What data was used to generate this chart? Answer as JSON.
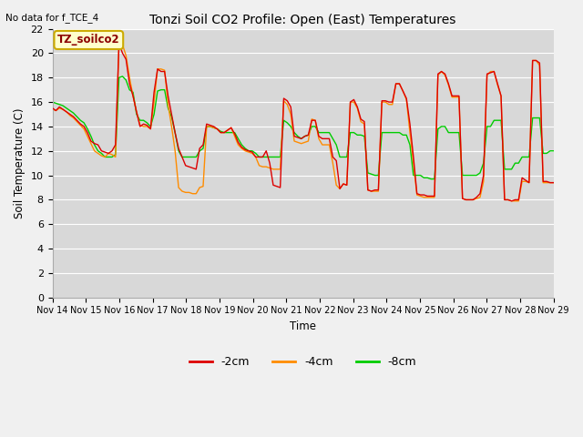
{
  "title": "Tonzi Soil CO2 Profile: Open (East) Temperatures",
  "no_data_label": "No data for f_TCE_4",
  "ylabel": "Soil Temperature (C)",
  "xlabel": "Time",
  "legend_label": "TZ_soilco2",
  "ylim": [
    0,
    22
  ],
  "yticks": [
    0,
    2,
    4,
    6,
    8,
    10,
    12,
    14,
    16,
    18,
    20,
    22
  ],
  "xtick_labels": [
    "Nov 14",
    "Nov 15",
    "Nov 16",
    "Nov 17",
    "Nov 18",
    "Nov 19",
    "Nov 20",
    "Nov 21",
    "Nov 22",
    "Nov 23",
    "Nov 24",
    "Nov 25",
    "Nov 26",
    "Nov 27",
    "Nov 28",
    "Nov 29"
  ],
  "fig_bg_color": "#f0f0f0",
  "plot_bg_color": "#d8d8d8",
  "line_colors": {
    "2cm": "#dd0000",
    "4cm": "#ff8c00",
    "8cm": "#00cc00"
  },
  "line_labels": [
    "-2cm",
    "-4cm",
    "-8cm"
  ],
  "series_2cm": [
    15.5,
    15.3,
    15.6,
    15.4,
    15.2,
    15.0,
    14.8,
    14.5,
    14.2,
    14.0,
    13.5,
    12.8,
    12.6,
    12.5,
    12.0,
    11.9,
    11.8,
    12.0,
    12.5,
    20.8,
    20.0,
    19.5,
    17.5,
    16.5,
    15.2,
    14.0,
    14.2,
    14.1,
    13.8,
    16.8,
    18.7,
    18.5,
    18.5,
    16.5,
    15.0,
    13.5,
    12.2,
    11.5,
    10.8,
    10.7,
    10.6,
    10.5,
    12.2,
    12.5,
    14.2,
    14.1,
    14.0,
    13.8,
    13.5,
    13.5,
    13.7,
    13.9,
    13.4,
    12.7,
    12.3,
    12.1,
    12.0,
    11.9,
    11.5,
    11.5,
    11.5,
    12.0,
    11.0,
    9.2,
    9.1,
    9.0,
    16.3,
    16.1,
    15.6,
    13.2,
    13.1,
    13.0,
    13.2,
    13.3,
    14.5,
    14.5,
    13.2,
    13.0,
    13.0,
    13.0,
    11.5,
    11.2,
    8.9,
    9.3,
    9.2,
    16.0,
    16.2,
    15.6,
    14.6,
    14.4,
    8.8,
    8.7,
    8.8,
    8.8,
    16.1,
    16.1,
    16.0,
    16.0,
    17.5,
    17.5,
    16.9,
    16.3,
    14.2,
    11.5,
    8.5,
    8.4,
    8.4,
    8.3,
    8.3,
    8.3,
    18.3,
    18.5,
    18.3,
    17.5,
    16.5,
    16.5,
    16.5,
    8.1,
    8.0,
    8.0,
    8.0,
    8.2,
    8.5,
    10.0,
    18.3,
    18.4,
    18.5,
    17.5,
    16.5,
    8.0,
    8.0,
    7.9,
    8.0,
    8.0,
    9.8,
    9.6,
    9.4,
    19.4,
    19.4,
    19.2,
    9.5,
    9.5,
    9.4,
    9.4
  ],
  "series_4cm": [
    15.4,
    15.3,
    15.5,
    15.4,
    15.2,
    14.9,
    14.7,
    14.4,
    14.1,
    13.8,
    13.2,
    12.6,
    12.0,
    11.8,
    11.6,
    11.5,
    11.8,
    11.7,
    11.5,
    20.8,
    20.7,
    19.8,
    18.0,
    16.5,
    15.2,
    14.1,
    14.0,
    14.0,
    13.8,
    16.0,
    18.7,
    18.7,
    18.6,
    15.8,
    14.0,
    12.0,
    9.0,
    8.7,
    8.6,
    8.6,
    8.5,
    8.5,
    9.0,
    9.1,
    14.0,
    14.0,
    13.9,
    13.8,
    13.5,
    13.5,
    13.7,
    13.9,
    13.2,
    12.5,
    12.2,
    12.0,
    11.9,
    11.8,
    11.5,
    10.8,
    10.7,
    10.7,
    10.6,
    10.5,
    10.5,
    10.5,
    16.1,
    15.8,
    15.0,
    12.8,
    12.7,
    12.6,
    12.7,
    12.8,
    14.6,
    14.5,
    13.0,
    12.5,
    12.5,
    12.5,
    11.0,
    9.2,
    8.9,
    9.3,
    9.2,
    16.0,
    16.0,
    15.5,
    14.4,
    14.2,
    8.8,
    8.7,
    8.7,
    8.7,
    16.0,
    16.0,
    15.8,
    15.8,
    17.5,
    17.5,
    16.9,
    16.2,
    13.5,
    11.0,
    8.4,
    8.3,
    8.2,
    8.2,
    8.2,
    8.2,
    18.2,
    18.5,
    18.2,
    17.4,
    16.4,
    16.4,
    16.4,
    8.1,
    8.0,
    8.0,
    8.0,
    8.1,
    8.2,
    9.5,
    18.2,
    18.5,
    18.5,
    17.4,
    16.5,
    8.0,
    8.0,
    7.9,
    7.9,
    7.9,
    9.5,
    9.5,
    9.4,
    19.4,
    19.4,
    19.0,
    9.4,
    9.4,
    9.4,
    9.4
  ],
  "series_8cm": [
    16.0,
    15.9,
    15.8,
    15.7,
    15.5,
    15.3,
    15.1,
    14.8,
    14.5,
    14.3,
    13.8,
    13.2,
    12.5,
    12.0,
    11.8,
    11.5,
    11.5,
    11.5,
    11.7,
    18.0,
    18.1,
    17.8,
    17.0,
    16.8,
    15.0,
    14.5,
    14.5,
    14.3,
    14.0,
    15.0,
    16.9,
    17.0,
    17.0,
    15.5,
    14.8,
    13.5,
    12.0,
    11.5,
    11.5,
    11.5,
    11.5,
    11.5,
    12.0,
    12.2,
    14.0,
    14.0,
    13.9,
    13.8,
    13.6,
    13.5,
    13.5,
    13.5,
    13.5,
    13.0,
    12.5,
    12.2,
    12.0,
    12.0,
    11.8,
    11.5,
    11.5,
    11.5,
    11.5,
    11.5,
    11.5,
    11.5,
    14.5,
    14.3,
    14.0,
    13.5,
    13.2,
    13.0,
    13.2,
    13.3,
    14.0,
    14.0,
    13.5,
    13.5,
    13.5,
    13.5,
    13.0,
    12.5,
    11.5,
    11.5,
    11.5,
    13.5,
    13.5,
    13.3,
    13.3,
    13.2,
    10.2,
    10.1,
    10.0,
    10.0,
    13.5,
    13.5,
    13.5,
    13.5,
    13.5,
    13.5,
    13.3,
    13.3,
    12.5,
    10.0,
    10.0,
    10.0,
    9.8,
    9.8,
    9.7,
    9.7,
    13.8,
    14.0,
    14.0,
    13.5,
    13.5,
    13.5,
    13.5,
    10.0,
    10.0,
    10.0,
    10.0,
    10.0,
    10.2,
    11.0,
    14.0,
    14.0,
    14.5,
    14.5,
    14.5,
    10.5,
    10.5,
    10.5,
    11.0,
    11.0,
    11.5,
    11.5,
    11.5,
    14.7,
    14.7,
    14.7,
    11.8,
    11.8,
    12.0,
    12.0
  ]
}
